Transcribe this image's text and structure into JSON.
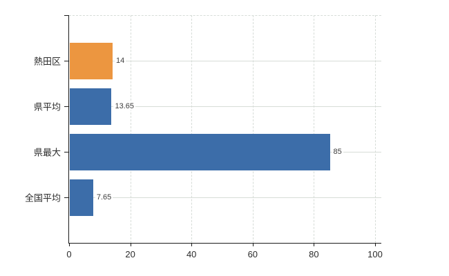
{
  "chart_data": {
    "type": "bar",
    "orientation": "horizontal",
    "title": "",
    "xlabel": "",
    "ylabel": "",
    "categories": [
      "熱田区",
      "県平均",
      "県最大",
      "全国平均"
    ],
    "values": [
      14,
      13.65,
      85,
      7.65
    ],
    "value_labels": [
      "14",
      "13.65",
      "85",
      "7.65"
    ],
    "bar_colors": [
      "#EC9640",
      "#3C6DA9",
      "#3C6DA9",
      "#3C6DA9"
    ],
    "xticks": [
      0,
      20,
      40,
      60,
      80,
      100
    ],
    "xtick_labels": [
      "0",
      "20",
      "40",
      "60",
      "80",
      "100"
    ],
    "xlim": [
      0,
      102
    ],
    "legend": "none",
    "grid": {
      "horizontal_lines": "solid, one per category center",
      "vertical_lines": "dashed, at each x tick",
      "top_border": "dashed"
    },
    "colors": {
      "highlight_bar": "#EC9640",
      "default_bar": "#3C6DA9",
      "gridline": "#D6DCD7",
      "axis": "#1A1A1A",
      "category_text": "#2B2B2B",
      "tick_text": "#2B2B2B",
      "value_text": "#3D3D3D",
      "background": "#FFFFFF"
    }
  }
}
